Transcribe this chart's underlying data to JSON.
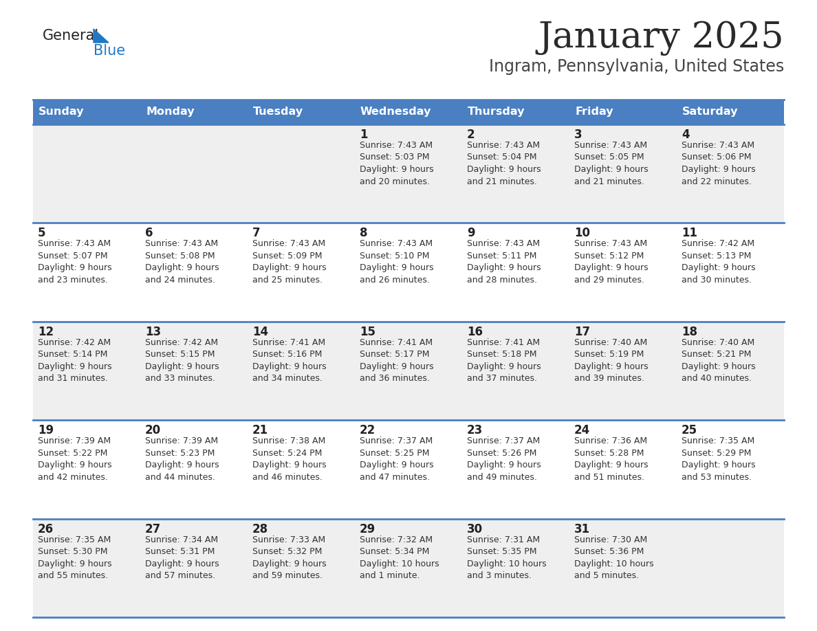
{
  "title": "January 2025",
  "subtitle": "Ingram, Pennsylvania, United States",
  "days_of_week": [
    "Sunday",
    "Monday",
    "Tuesday",
    "Wednesday",
    "Thursday",
    "Friday",
    "Saturday"
  ],
  "header_bg": "#4a7fc1",
  "header_text": "#ffffff",
  "row_bg_odd": "#efefef",
  "row_bg_even": "#ffffff",
  "border_color": "#4a7fc1",
  "day_num_color": "#222222",
  "text_color": "#333333",
  "title_color": "#2a2a2a",
  "subtitle_color": "#444444",
  "logo_general_color": "#222222",
  "logo_blue_color": "#2178c4",
  "weeks": [
    [
      {
        "day": "",
        "sunrise": "",
        "sunset": "",
        "daylight": ""
      },
      {
        "day": "",
        "sunrise": "",
        "sunset": "",
        "daylight": ""
      },
      {
        "day": "",
        "sunrise": "",
        "sunset": "",
        "daylight": ""
      },
      {
        "day": "1",
        "sunrise": "7:43 AM",
        "sunset": "5:03 PM",
        "daylight": "9 hours\nand 20 minutes."
      },
      {
        "day": "2",
        "sunrise": "7:43 AM",
        "sunset": "5:04 PM",
        "daylight": "9 hours\nand 21 minutes."
      },
      {
        "day": "3",
        "sunrise": "7:43 AM",
        "sunset": "5:05 PM",
        "daylight": "9 hours\nand 21 minutes."
      },
      {
        "day": "4",
        "sunrise": "7:43 AM",
        "sunset": "5:06 PM",
        "daylight": "9 hours\nand 22 minutes."
      }
    ],
    [
      {
        "day": "5",
        "sunrise": "7:43 AM",
        "sunset": "5:07 PM",
        "daylight": "9 hours\nand 23 minutes."
      },
      {
        "day": "6",
        "sunrise": "7:43 AM",
        "sunset": "5:08 PM",
        "daylight": "9 hours\nand 24 minutes."
      },
      {
        "day": "7",
        "sunrise": "7:43 AM",
        "sunset": "5:09 PM",
        "daylight": "9 hours\nand 25 minutes."
      },
      {
        "day": "8",
        "sunrise": "7:43 AM",
        "sunset": "5:10 PM",
        "daylight": "9 hours\nand 26 minutes."
      },
      {
        "day": "9",
        "sunrise": "7:43 AM",
        "sunset": "5:11 PM",
        "daylight": "9 hours\nand 28 minutes."
      },
      {
        "day": "10",
        "sunrise": "7:43 AM",
        "sunset": "5:12 PM",
        "daylight": "9 hours\nand 29 minutes."
      },
      {
        "day": "11",
        "sunrise": "7:42 AM",
        "sunset": "5:13 PM",
        "daylight": "9 hours\nand 30 minutes."
      }
    ],
    [
      {
        "day": "12",
        "sunrise": "7:42 AM",
        "sunset": "5:14 PM",
        "daylight": "9 hours\nand 31 minutes."
      },
      {
        "day": "13",
        "sunrise": "7:42 AM",
        "sunset": "5:15 PM",
        "daylight": "9 hours\nand 33 minutes."
      },
      {
        "day": "14",
        "sunrise": "7:41 AM",
        "sunset": "5:16 PM",
        "daylight": "9 hours\nand 34 minutes."
      },
      {
        "day": "15",
        "sunrise": "7:41 AM",
        "sunset": "5:17 PM",
        "daylight": "9 hours\nand 36 minutes."
      },
      {
        "day": "16",
        "sunrise": "7:41 AM",
        "sunset": "5:18 PM",
        "daylight": "9 hours\nand 37 minutes."
      },
      {
        "day": "17",
        "sunrise": "7:40 AM",
        "sunset": "5:19 PM",
        "daylight": "9 hours\nand 39 minutes."
      },
      {
        "day": "18",
        "sunrise": "7:40 AM",
        "sunset": "5:21 PM",
        "daylight": "9 hours\nand 40 minutes."
      }
    ],
    [
      {
        "day": "19",
        "sunrise": "7:39 AM",
        "sunset": "5:22 PM",
        "daylight": "9 hours\nand 42 minutes."
      },
      {
        "day": "20",
        "sunrise": "7:39 AM",
        "sunset": "5:23 PM",
        "daylight": "9 hours\nand 44 minutes."
      },
      {
        "day": "21",
        "sunrise": "7:38 AM",
        "sunset": "5:24 PM",
        "daylight": "9 hours\nand 46 minutes."
      },
      {
        "day": "22",
        "sunrise": "7:37 AM",
        "sunset": "5:25 PM",
        "daylight": "9 hours\nand 47 minutes."
      },
      {
        "day": "23",
        "sunrise": "7:37 AM",
        "sunset": "5:26 PM",
        "daylight": "9 hours\nand 49 minutes."
      },
      {
        "day": "24",
        "sunrise": "7:36 AM",
        "sunset": "5:28 PM",
        "daylight": "9 hours\nand 51 minutes."
      },
      {
        "day": "25",
        "sunrise": "7:35 AM",
        "sunset": "5:29 PM",
        "daylight": "9 hours\nand 53 minutes."
      }
    ],
    [
      {
        "day": "26",
        "sunrise": "7:35 AM",
        "sunset": "5:30 PM",
        "daylight": "9 hours\nand 55 minutes."
      },
      {
        "day": "27",
        "sunrise": "7:34 AM",
        "sunset": "5:31 PM",
        "daylight": "9 hours\nand 57 minutes."
      },
      {
        "day": "28",
        "sunrise": "7:33 AM",
        "sunset": "5:32 PM",
        "daylight": "9 hours\nand 59 minutes."
      },
      {
        "day": "29",
        "sunrise": "7:32 AM",
        "sunset": "5:34 PM",
        "daylight": "10 hours\nand 1 minute."
      },
      {
        "day": "30",
        "sunrise": "7:31 AM",
        "sunset": "5:35 PM",
        "daylight": "10 hours\nand 3 minutes."
      },
      {
        "day": "31",
        "sunrise": "7:30 AM",
        "sunset": "5:36 PM",
        "daylight": "10 hours\nand 5 minutes."
      },
      {
        "day": "",
        "sunrise": "",
        "sunset": "",
        "daylight": ""
      }
    ]
  ],
  "figwidth": 11.88,
  "figheight": 9.18,
  "dpi": 100
}
